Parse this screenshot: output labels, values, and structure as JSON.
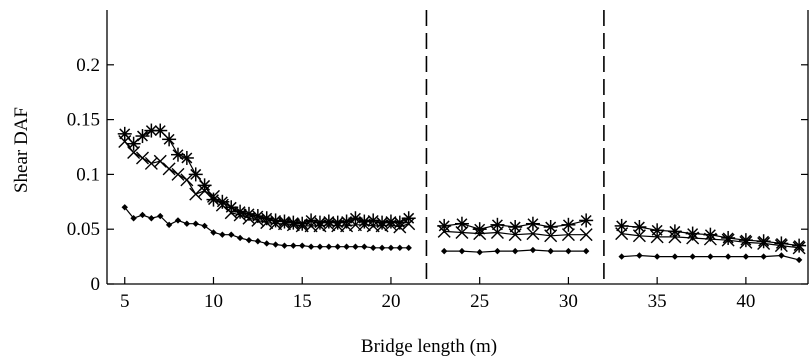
{
  "chart_data": {
    "type": "line",
    "title": "",
    "xlabel": "Bridge length (m)",
    "ylabel": "Shear DAF",
    "xlim": [
      4,
      43.5
    ],
    "ylim": [
      0,
      0.25
    ],
    "xticks": [
      5,
      10,
      15,
      20,
      25,
      30,
      35,
      40
    ],
    "yticks": [
      0,
      0.05,
      0.1,
      0.15,
      0.2
    ],
    "ytick_labels": [
      "0",
      "0.05",
      "0.1",
      "0.15",
      "0.2"
    ],
    "grid": false,
    "legend": "none",
    "vertical_dividers_x": [
      22,
      32
    ],
    "colors": {
      "axis": "#000000",
      "series": "#000000"
    },
    "series": [
      {
        "marker": "asterisk",
        "segments": [
          [
            [
              5,
              0.137
            ],
            [
              5.5,
              0.128
            ],
            [
              6,
              0.135
            ],
            [
              6.5,
              0.14
            ],
            [
              7,
              0.14
            ],
            [
              7.5,
              0.132
            ],
            [
              8,
              0.118
            ],
            [
              8.5,
              0.115
            ],
            [
              9,
              0.1
            ],
            [
              9.5,
              0.09
            ],
            [
              10,
              0.077
            ],
            [
              10.5,
              0.075
            ],
            [
              11,
              0.07
            ],
            [
              11.5,
              0.066
            ],
            [
              12,
              0.064
            ],
            [
              12.5,
              0.062
            ],
            [
              13,
              0.06
            ],
            [
              13.5,
              0.058
            ],
            [
              14,
              0.057
            ],
            [
              14.5,
              0.056
            ],
            [
              15,
              0.055
            ],
            [
              15.5,
              0.058
            ],
            [
              16,
              0.056
            ],
            [
              16.5,
              0.057
            ],
            [
              17,
              0.056
            ],
            [
              17.5,
              0.057
            ],
            [
              18,
              0.06
            ],
            [
              18.5,
              0.057
            ],
            [
              19,
              0.058
            ],
            [
              19.5,
              0.056
            ],
            [
              20,
              0.057
            ],
            [
              20.5,
              0.056
            ],
            [
              21,
              0.06
            ]
          ],
          [
            [
              23,
              0.053
            ],
            [
              24,
              0.055
            ],
            [
              25,
              0.05
            ],
            [
              26,
              0.054
            ],
            [
              27,
              0.052
            ],
            [
              28,
              0.055
            ],
            [
              29,
              0.052
            ],
            [
              30,
              0.054
            ],
            [
              31,
              0.058
            ]
          ],
          [
            [
              33,
              0.053
            ],
            [
              34,
              0.052
            ],
            [
              35,
              0.049
            ],
            [
              36,
              0.048
            ],
            [
              37,
              0.046
            ],
            [
              38,
              0.045
            ],
            [
              39,
              0.042
            ],
            [
              40,
              0.04
            ],
            [
              41,
              0.039
            ],
            [
              42,
              0.037
            ],
            [
              43,
              0.035
            ]
          ]
        ]
      },
      {
        "marker": "cross",
        "segments": [
          [
            [
              5,
              0.13
            ],
            [
              5.5,
              0.12
            ],
            [
              6,
              0.115
            ],
            [
              6.5,
              0.11
            ],
            [
              7,
              0.112
            ],
            [
              7.5,
              0.105
            ],
            [
              8,
              0.1
            ],
            [
              8.5,
              0.095
            ],
            [
              9,
              0.082
            ],
            [
              9.5,
              0.085
            ],
            [
              10,
              0.08
            ],
            [
              10.5,
              0.072
            ],
            [
              11,
              0.065
            ],
            [
              11.5,
              0.063
            ],
            [
              12,
              0.06
            ],
            [
              12.5,
              0.058
            ],
            [
              13,
              0.056
            ],
            [
              13.5,
              0.055
            ],
            [
              14,
              0.055
            ],
            [
              14.5,
              0.054
            ],
            [
              15,
              0.053
            ],
            [
              15.5,
              0.053
            ],
            [
              16,
              0.053
            ],
            [
              16.5,
              0.054
            ],
            [
              17,
              0.053
            ],
            [
              17.5,
              0.053
            ],
            [
              18,
              0.054
            ],
            [
              18.5,
              0.054
            ],
            [
              19,
              0.053
            ],
            [
              19.5,
              0.053
            ],
            [
              20,
              0.054
            ],
            [
              20.5,
              0.052
            ],
            [
              21,
              0.055
            ]
          ],
          [
            [
              23,
              0.048
            ],
            [
              24,
              0.047
            ],
            [
              25,
              0.046
            ],
            [
              26,
              0.047
            ],
            [
              27,
              0.045
            ],
            [
              28,
              0.046
            ],
            [
              29,
              0.044
            ],
            [
              30,
              0.045
            ],
            [
              31,
              0.045
            ]
          ],
          [
            [
              33,
              0.046
            ],
            [
              34,
              0.044
            ],
            [
              35,
              0.043
            ],
            [
              36,
              0.043
            ],
            [
              37,
              0.042
            ],
            [
              38,
              0.041
            ],
            [
              39,
              0.04
            ],
            [
              40,
              0.038
            ],
            [
              41,
              0.037
            ],
            [
              42,
              0.035
            ],
            [
              43,
              0.033
            ]
          ]
        ]
      },
      {
        "marker": "diamond",
        "segments": [
          [
            [
              5,
              0.07
            ],
            [
              5.5,
              0.06
            ],
            [
              6,
              0.063
            ],
            [
              6.5,
              0.06
            ],
            [
              7,
              0.062
            ],
            [
              7.5,
              0.054
            ],
            [
              8,
              0.058
            ],
            [
              8.5,
              0.055
            ],
            [
              9,
              0.055
            ],
            [
              9.5,
              0.053
            ],
            [
              10,
              0.047
            ],
            [
              10.5,
              0.045
            ],
            [
              11,
              0.045
            ],
            [
              11.5,
              0.042
            ],
            [
              12,
              0.04
            ],
            [
              12.5,
              0.039
            ],
            [
              13,
              0.037
            ],
            [
              13.5,
              0.036
            ],
            [
              14,
              0.035
            ],
            [
              14.5,
              0.035
            ],
            [
              15,
              0.035
            ],
            [
              15.5,
              0.034
            ],
            [
              16,
              0.034
            ],
            [
              16.5,
              0.034
            ],
            [
              17,
              0.034
            ],
            [
              17.5,
              0.034
            ],
            [
              18,
              0.034
            ],
            [
              18.5,
              0.034
            ],
            [
              19,
              0.033
            ],
            [
              19.5,
              0.033
            ],
            [
              20,
              0.033
            ],
            [
              20.5,
              0.033
            ],
            [
              21,
              0.033
            ]
          ],
          [
            [
              23,
              0.03
            ],
            [
              24,
              0.03
            ],
            [
              25,
              0.029
            ],
            [
              26,
              0.03
            ],
            [
              27,
              0.03
            ],
            [
              28,
              0.031
            ],
            [
              29,
              0.03
            ],
            [
              30,
              0.03
            ],
            [
              31,
              0.03
            ]
          ],
          [
            [
              33,
              0.025
            ],
            [
              34,
              0.026
            ],
            [
              35,
              0.025
            ],
            [
              36,
              0.025
            ],
            [
              37,
              0.025
            ],
            [
              38,
              0.025
            ],
            [
              39,
              0.025
            ],
            [
              40,
              0.025
            ],
            [
              41,
              0.025
            ],
            [
              42,
              0.026
            ],
            [
              43,
              0.022
            ]
          ]
        ]
      }
    ]
  }
}
